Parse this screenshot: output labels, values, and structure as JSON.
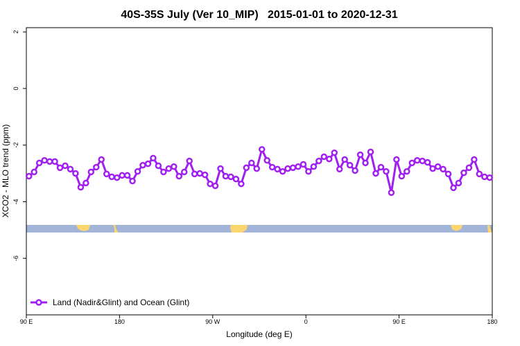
{
  "chart_data": {
    "type": "line",
    "title": "40S-35S July (Ver 10_MIP)   2015-01-01 to 2020-12-31",
    "x_label": "Longitude (deg E)",
    "y_label": "XCO2 - MLO trend (ppm)",
    "xlim": [
      90,
      540
    ],
    "ylim": [
      -8,
      2.15
    ],
    "xticks": [
      {
        "value": 90,
        "label": "90 E"
      },
      180,
      {
        "value": 270,
        "label": "90 W"
      },
      {
        "value": 360,
        "label": "0"
      },
      {
        "value": 450,
        "label": "90 E"
      },
      {
        "value": 540,
        "label": "180"
      }
    ],
    "yticks": [
      2,
      0,
      -2,
      -4,
      -6
    ],
    "legend": "bottom-left",
    "x": [
      92.5,
      97.5,
      102.5,
      107.5,
      112.5,
      117.5,
      122.5,
      127.5,
      132.5,
      137.5,
      142.5,
      147.5,
      152.5,
      157.5,
      162.5,
      167.5,
      172.5,
      177.5,
      182.5,
      187.5,
      192.5,
      197.5,
      202.5,
      207.5,
      212.5,
      217.5,
      222.5,
      227.5,
      232.5,
      237.5,
      242.5,
      247.5,
      252.5,
      257.5,
      262.5,
      267.5,
      272.5,
      277.5,
      282.5,
      287.5,
      292.5,
      297.5,
      302.5,
      307.5,
      312.5,
      317.5,
      322.5,
      327.5,
      332.5,
      337.5,
      342.5,
      347.5,
      352.5,
      357.5,
      362.5,
      367.5,
      372.5,
      377.5,
      382.5,
      387.5,
      392.5,
      397.5,
      402.5,
      407.5,
      412.5,
      417.5,
      422.5,
      427.5,
      432.5,
      437.5,
      442.5,
      447.5,
      452.5,
      457.5,
      462.5,
      467.5,
      472.5,
      477.5,
      482.5,
      487.5,
      492.5,
      497.5,
      502.5,
      507.5,
      512.5,
      517.5,
      522.5,
      527.5,
      532.5,
      537.5
    ],
    "series": [
      {
        "name": "Land (Nadir&Glint) and Ocean (Glint)",
        "color": "#a020f0",
        "values": [
          -3.1,
          -2.95,
          -2.63,
          -2.54,
          -2.58,
          -2.58,
          -2.8,
          -2.73,
          -2.85,
          -3.0,
          -3.49,
          -3.34,
          -2.95,
          -2.78,
          -2.51,
          -3.02,
          -3.12,
          -3.15,
          -3.07,
          -3.07,
          -3.27,
          -2.93,
          -2.71,
          -2.66,
          -2.46,
          -2.73,
          -2.95,
          -2.83,
          -2.76,
          -3.1,
          -2.95,
          -2.56,
          -3.02,
          -3.0,
          -3.05,
          -3.37,
          -3.44,
          -2.83,
          -3.1,
          -3.12,
          -3.2,
          -3.37,
          -2.8,
          -2.63,
          -2.83,
          -2.15,
          -2.54,
          -2.78,
          -2.85,
          -2.93,
          -2.83,
          -2.8,
          -2.76,
          -2.68,
          -2.93,
          -2.76,
          -2.56,
          -2.41,
          -2.49,
          -2.27,
          -2.85,
          -2.51,
          -2.71,
          -2.9,
          -2.34,
          -2.63,
          -2.24,
          -3.0,
          -2.78,
          -2.93,
          -3.68,
          -2.51,
          -3.1,
          -2.93,
          -2.63,
          -2.54,
          -2.56,
          -2.61,
          -2.83,
          -2.76,
          -2.85,
          -3.02,
          -3.51,
          -3.34,
          -2.98,
          -2.8,
          -2.51,
          -3.02,
          -3.12,
          -3.15
        ]
      }
    ]
  }
}
